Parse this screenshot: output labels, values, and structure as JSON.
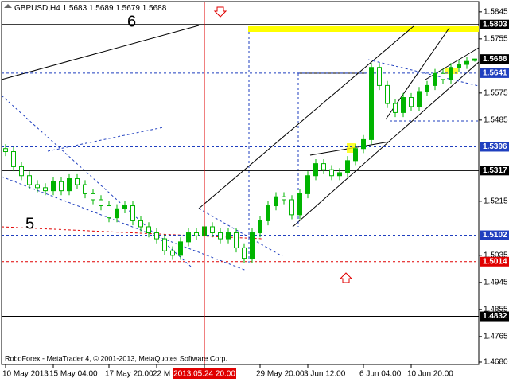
{
  "chart_data": {
    "type": "candlestick",
    "symbol": "GBPUSD,H4",
    "footer": "RoboForex - MetaTrader 4, © 2001-2013, MetaQuotes Software Corp.",
    "annotations": [
      {
        "text": "6",
        "color": "#1f3fbf"
      },
      {
        "text": "5",
        "color": "#1f3fbf"
      }
    ],
    "categories": [
      "10 May 2013",
      null,
      null,
      null,
      null,
      null,
      "15 May 04:00",
      null,
      null,
      null,
      null,
      null,
      null,
      "17 May 20:00",
      null,
      null,
      null,
      null,
      null,
      "22 M",
      null,
      null,
      null,
      null,
      null,
      "2013.05.24 20:00",
      null,
      null,
      null,
      null,
      null,
      null,
      "29 May 20:00",
      null,
      null,
      null,
      null,
      null,
      "3 Jun 12:00",
      null,
      null,
      null,
      null,
      null,
      null,
      "6 Jun 04:00",
      null,
      null,
      null,
      null,
      null,
      "10 Jun 20:00",
      null,
      null,
      null,
      null,
      null,
      null,
      null,
      null
    ],
    "cursor": {
      "category_index": 25,
      "color": "#e00000"
    },
    "open": [
      1.539,
      1.538,
      1.533,
      1.53,
      1.527,
      1.526,
      1.525,
      1.528,
      1.525,
      1.529,
      1.527,
      1.524,
      1.522,
      1.52,
      1.516,
      1.519,
      1.52,
      1.515,
      1.513,
      1.511,
      1.509,
      1.505,
      1.5035,
      1.508,
      1.511,
      1.51,
      1.513,
      1.511,
      1.509,
      1.511,
      1.506,
      1.5025,
      1.511,
      1.515,
      1.52,
      1.523,
      1.522,
      1.517,
      1.524,
      1.53,
      1.534,
      1.532,
      1.53,
      1.531,
      1.535,
      1.539,
      1.542,
      1.566,
      1.56,
      1.554,
      1.551,
      1.556,
      1.553,
      1.558,
      1.56,
      1.564,
      1.562,
      1.566,
      1.567,
      1.5683
    ],
    "high": [
      1.5405,
      1.5395,
      1.5345,
      1.5315,
      1.5285,
      1.5275,
      1.5295,
      1.5295,
      1.5305,
      1.5305,
      1.5285,
      1.5255,
      1.5235,
      1.5215,
      1.5205,
      1.5215,
      1.5215,
      1.5165,
      1.5145,
      1.5125,
      1.5105,
      1.5065,
      1.5095,
      1.5125,
      1.5125,
      1.5145,
      1.5145,
      1.5125,
      1.5125,
      1.5125,
      1.5075,
      1.5125,
      1.5165,
      1.5215,
      1.5245,
      1.5245,
      1.5235,
      1.5255,
      1.5315,
      1.5355,
      1.5355,
      1.5335,
      1.5325,
      1.5365,
      1.5405,
      1.5435,
      1.5675,
      1.5675,
      1.5615,
      1.5555,
      1.5575,
      1.5575,
      1.5595,
      1.5615,
      1.5655,
      1.5655,
      1.5675,
      1.5685,
      1.5695,
      1.5689
    ],
    "low": [
      1.5365,
      1.5315,
      1.5285,
      1.5255,
      1.5245,
      1.5235,
      1.5235,
      1.5235,
      1.5235,
      1.5255,
      1.5225,
      1.5205,
      1.5185,
      1.5145,
      1.5145,
      1.5175,
      1.5135,
      1.5115,
      1.5095,
      1.5075,
      1.5035,
      1.502,
      1.502,
      1.5065,
      1.5085,
      1.5085,
      1.5095,
      1.5075,
      1.5075,
      1.5045,
      1.501,
      1.501,
      1.5095,
      1.5135,
      1.5185,
      1.5205,
      1.5155,
      1.5155,
      1.5225,
      1.5285,
      1.5305,
      1.5285,
      1.5285,
      1.5295,
      1.5335,
      1.5375,
      1.5405,
      1.5585,
      1.5525,
      1.5495,
      1.5495,
      1.5515,
      1.5515,
      1.5565,
      1.5585,
      1.5605,
      1.5605,
      1.5645,
      1.5655,
      1.5679
    ],
    "close": [
      1.538,
      1.533,
      1.53,
      1.527,
      1.526,
      1.525,
      1.528,
      1.525,
      1.529,
      1.527,
      1.524,
      1.522,
      1.52,
      1.516,
      1.519,
      1.52,
      1.515,
      1.513,
      1.511,
      1.509,
      1.505,
      1.5035,
      1.508,
      1.511,
      1.51,
      1.513,
      1.511,
      1.509,
      1.511,
      1.506,
      1.5025,
      1.511,
      1.515,
      1.52,
      1.523,
      1.522,
      1.517,
      1.524,
      1.53,
      1.534,
      1.532,
      1.53,
      1.531,
      1.535,
      1.539,
      1.542,
      1.566,
      1.56,
      1.554,
      1.551,
      1.556,
      1.553,
      1.558,
      1.56,
      1.564,
      1.562,
      1.566,
      1.567,
      1.568,
      1.5688
    ],
    "bull_color": "#00b400",
    "bear_color": "#ffffff",
    "ylim": [
      1.4672,
      1.5879
    ],
    "yticks": [
      1.5845,
      1.5755,
      1.5575,
      1.5485,
      1.5215,
      1.5035,
      1.4945,
      1.4855,
      1.4765,
      {
        "value": 1.468,
        "label": "1.4680"
      }
    ],
    "levels": [
      {
        "value": 1.5803,
        "color": "#000000",
        "dash": false
      },
      {
        "value": 1.5641,
        "color": "#1f3fbf",
        "dash": true
      },
      {
        "value": 1.5396,
        "color": "#1f3fbf",
        "dash": true
      },
      {
        "value": 1.5317,
        "color": "#000000",
        "dash": false
      },
      {
        "value": 1.5102,
        "color": "#1f3fbf",
        "dash": true
      },
      {
        "value": 1.5014,
        "color": "#e00000",
        "dash": true
      },
      {
        "value": 1.4832,
        "color": "#000000",
        "dash": false
      }
    ],
    "grid": false
  }
}
